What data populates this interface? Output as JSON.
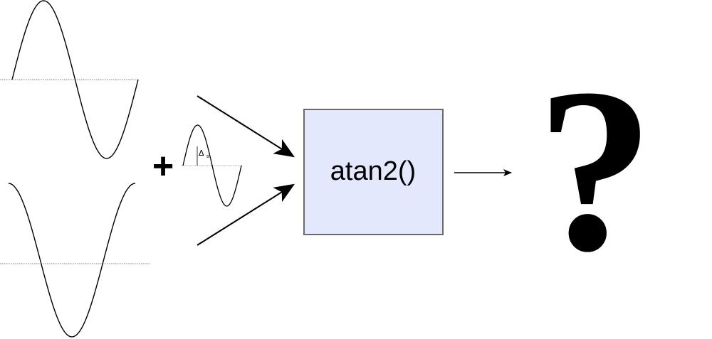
{
  "diagram": {
    "operator": "+",
    "box_label": "atan2()",
    "output": "?",
    "phase_shift_symbol": "Δ",
    "phase_shift_subscript": "s",
    "colors": {
      "stroke": "#000000",
      "box_fill": "#e3e8fc",
      "box_stroke": "#6a6a6a",
      "baseline": "#777777"
    }
  }
}
